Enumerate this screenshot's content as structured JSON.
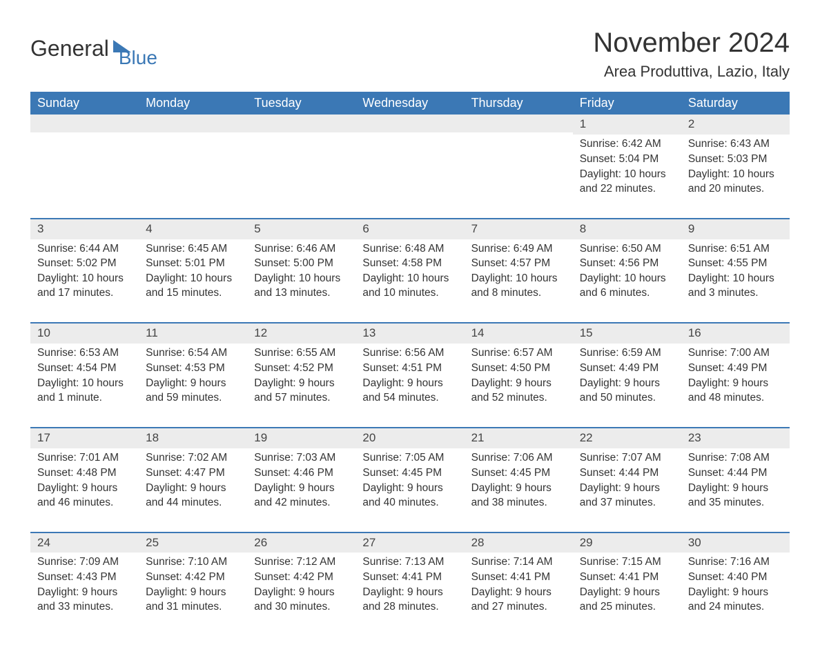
{
  "brand": {
    "part1": "General",
    "part2": "Blue"
  },
  "title": "November 2024",
  "location": "Area Produttiva, Lazio, Italy",
  "colors": {
    "header_bg": "#3b78b5",
    "header_text": "#ffffff",
    "daynum_bg": "#ececec",
    "row_border": "#3b78b5",
    "body_text": "#333333",
    "page_bg": "#ffffff"
  },
  "weekdays": [
    "Sunday",
    "Monday",
    "Tuesday",
    "Wednesday",
    "Thursday",
    "Friday",
    "Saturday"
  ],
  "labels": {
    "sunrise": "Sunrise:",
    "sunset": "Sunset:",
    "daylight": "Daylight:"
  },
  "weeks": [
    [
      null,
      null,
      null,
      null,
      null,
      {
        "n": "1",
        "sunrise": "6:42 AM",
        "sunset": "5:04 PM",
        "daylight": "10 hours and 22 minutes."
      },
      {
        "n": "2",
        "sunrise": "6:43 AM",
        "sunset": "5:03 PM",
        "daylight": "10 hours and 20 minutes."
      }
    ],
    [
      {
        "n": "3",
        "sunrise": "6:44 AM",
        "sunset": "5:02 PM",
        "daylight": "10 hours and 17 minutes."
      },
      {
        "n": "4",
        "sunrise": "6:45 AM",
        "sunset": "5:01 PM",
        "daylight": "10 hours and 15 minutes."
      },
      {
        "n": "5",
        "sunrise": "6:46 AM",
        "sunset": "5:00 PM",
        "daylight": "10 hours and 13 minutes."
      },
      {
        "n": "6",
        "sunrise": "6:48 AM",
        "sunset": "4:58 PM",
        "daylight": "10 hours and 10 minutes."
      },
      {
        "n": "7",
        "sunrise": "6:49 AM",
        "sunset": "4:57 PM",
        "daylight": "10 hours and 8 minutes."
      },
      {
        "n": "8",
        "sunrise": "6:50 AM",
        "sunset": "4:56 PM",
        "daylight": "10 hours and 6 minutes."
      },
      {
        "n": "9",
        "sunrise": "6:51 AM",
        "sunset": "4:55 PM",
        "daylight": "10 hours and 3 minutes."
      }
    ],
    [
      {
        "n": "10",
        "sunrise": "6:53 AM",
        "sunset": "4:54 PM",
        "daylight": "10 hours and 1 minute."
      },
      {
        "n": "11",
        "sunrise": "6:54 AM",
        "sunset": "4:53 PM",
        "daylight": "9 hours and 59 minutes."
      },
      {
        "n": "12",
        "sunrise": "6:55 AM",
        "sunset": "4:52 PM",
        "daylight": "9 hours and 57 minutes."
      },
      {
        "n": "13",
        "sunrise": "6:56 AM",
        "sunset": "4:51 PM",
        "daylight": "9 hours and 54 minutes."
      },
      {
        "n": "14",
        "sunrise": "6:57 AM",
        "sunset": "4:50 PM",
        "daylight": "9 hours and 52 minutes."
      },
      {
        "n": "15",
        "sunrise": "6:59 AM",
        "sunset": "4:49 PM",
        "daylight": "9 hours and 50 minutes."
      },
      {
        "n": "16",
        "sunrise": "7:00 AM",
        "sunset": "4:49 PM",
        "daylight": "9 hours and 48 minutes."
      }
    ],
    [
      {
        "n": "17",
        "sunrise": "7:01 AM",
        "sunset": "4:48 PM",
        "daylight": "9 hours and 46 minutes."
      },
      {
        "n": "18",
        "sunrise": "7:02 AM",
        "sunset": "4:47 PM",
        "daylight": "9 hours and 44 minutes."
      },
      {
        "n": "19",
        "sunrise": "7:03 AM",
        "sunset": "4:46 PM",
        "daylight": "9 hours and 42 minutes."
      },
      {
        "n": "20",
        "sunrise": "7:05 AM",
        "sunset": "4:45 PM",
        "daylight": "9 hours and 40 minutes."
      },
      {
        "n": "21",
        "sunrise": "7:06 AM",
        "sunset": "4:45 PM",
        "daylight": "9 hours and 38 minutes."
      },
      {
        "n": "22",
        "sunrise": "7:07 AM",
        "sunset": "4:44 PM",
        "daylight": "9 hours and 37 minutes."
      },
      {
        "n": "23",
        "sunrise": "7:08 AM",
        "sunset": "4:44 PM",
        "daylight": "9 hours and 35 minutes."
      }
    ],
    [
      {
        "n": "24",
        "sunrise": "7:09 AM",
        "sunset": "4:43 PM",
        "daylight": "9 hours and 33 minutes."
      },
      {
        "n": "25",
        "sunrise": "7:10 AM",
        "sunset": "4:42 PM",
        "daylight": "9 hours and 31 minutes."
      },
      {
        "n": "26",
        "sunrise": "7:12 AM",
        "sunset": "4:42 PM",
        "daylight": "9 hours and 30 minutes."
      },
      {
        "n": "27",
        "sunrise": "7:13 AM",
        "sunset": "4:41 PM",
        "daylight": "9 hours and 28 minutes."
      },
      {
        "n": "28",
        "sunrise": "7:14 AM",
        "sunset": "4:41 PM",
        "daylight": "9 hours and 27 minutes."
      },
      {
        "n": "29",
        "sunrise": "7:15 AM",
        "sunset": "4:41 PM",
        "daylight": "9 hours and 25 minutes."
      },
      {
        "n": "30",
        "sunrise": "7:16 AM",
        "sunset": "4:40 PM",
        "daylight": "9 hours and 24 minutes."
      }
    ]
  ]
}
